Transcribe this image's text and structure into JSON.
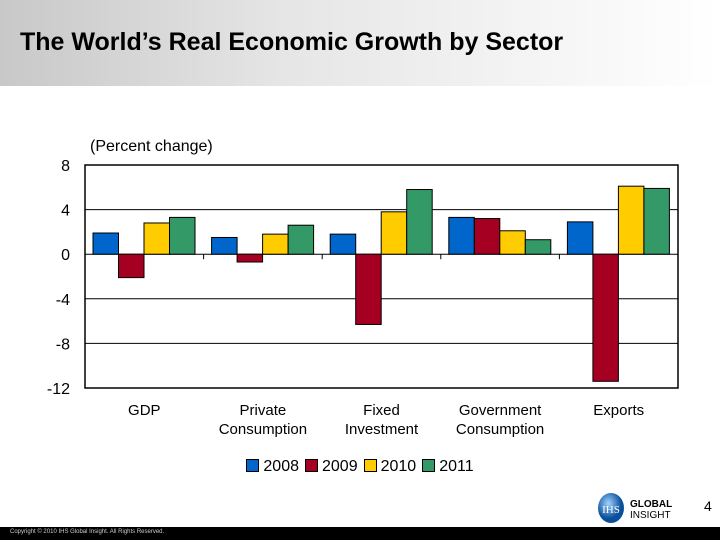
{
  "title": "The World’s Real Economic Growth by Sector",
  "page_number": "4",
  "copyright": "Copyright © 2010 IHS Global Insight. All Rights Reserved.",
  "logo_text": "IHS GLOBAL INSIGHT",
  "chart_data": {
    "type": "bar",
    "subtitle": "(Percent change)",
    "categories": [
      "GDP",
      "Private Consumption",
      "Fixed Investment",
      "Government Consumption",
      "Exports"
    ],
    "category_lines": [
      [
        "GDP"
      ],
      [
        "Private",
        "Consumption"
      ],
      [
        "Fixed",
        "Investment"
      ],
      [
        "Government",
        "Consumption"
      ],
      [
        "Exports"
      ]
    ],
    "series": [
      {
        "name": "2008",
        "color": "#0066cc",
        "values": [
          1.9,
          1.5,
          1.8,
          3.3,
          2.9
        ]
      },
      {
        "name": "2009",
        "color": "#a50021",
        "values": [
          -2.1,
          -0.7,
          -6.3,
          3.2,
          -11.4
        ]
      },
      {
        "name": "2010",
        "color": "#ffcc00",
        "values": [
          2.8,
          1.8,
          3.8,
          2.1,
          6.1
        ]
      },
      {
        "name": "2011",
        "color": "#339966",
        "values": [
          3.3,
          2.6,
          5.8,
          1.3,
          5.9
        ]
      }
    ],
    "ylim": [
      -12,
      8
    ],
    "yticks": [
      8,
      4,
      0,
      -4,
      -8,
      -12
    ],
    "grid": true,
    "legend": "bottom"
  }
}
